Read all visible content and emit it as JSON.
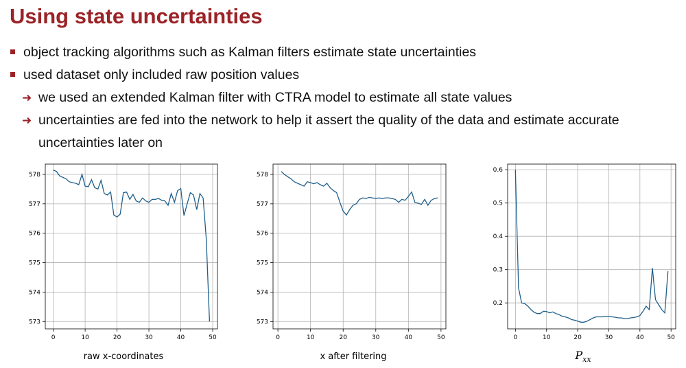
{
  "slide": {
    "title": "Using state uncertainties",
    "bullets": [
      {
        "text": "object tracking algorithms such as Kalman filters estimate state uncertainties"
      },
      {
        "text": "used dataset only included raw position values"
      }
    ],
    "sub_bullets": [
      {
        "text": "we used an extended Kalman filter with CTRA model to estimate all state values"
      },
      {
        "text": "uncertainties are fed into the network to help it assert the quality of the data and estimate accurate"
      },
      {
        "text": "uncertainties later on"
      }
    ],
    "arrow_icon": "right-arrow-icon",
    "accent_color": "#9b2226"
  },
  "captions": {
    "raw": "raw x-coordinates",
    "filtered": "x after filtering",
    "pxx_main": "P",
    "pxx_sub": "xx"
  },
  "chart_data": [
    {
      "type": "line",
      "series_color": "#1f5f8b",
      "grid": true,
      "xlim": [
        -2.5,
        51.5
      ],
      "ylim": [
        572.75,
        578.35
      ],
      "xticks": [
        0,
        10,
        20,
        30,
        40,
        50
      ],
      "yticks": [
        573,
        574,
        575,
        576,
        577,
        578
      ],
      "x": [
        0,
        1,
        2,
        3,
        4,
        5,
        6,
        7,
        8,
        9,
        10,
        11,
        12,
        13,
        14,
        15,
        16,
        17,
        18,
        19,
        20,
        21,
        22,
        23,
        24,
        25,
        26,
        27,
        28,
        29,
        30,
        31,
        32,
        33,
        34,
        35,
        36,
        37,
        38,
        39,
        40,
        41,
        42,
        43,
        44,
        45,
        46,
        47,
        48,
        49
      ],
      "values": [
        578.15,
        578.1,
        577.95,
        577.9,
        577.85,
        577.75,
        577.72,
        577.7,
        577.65,
        578.0,
        577.6,
        577.58,
        577.82,
        577.55,
        577.5,
        577.8,
        577.35,
        577.3,
        577.4,
        576.62,
        576.55,
        576.65,
        577.38,
        577.4,
        577.15,
        577.32,
        577.1,
        577.05,
        577.2,
        577.1,
        577.05,
        577.15,
        577.15,
        577.18,
        577.12,
        577.1,
        576.95,
        577.35,
        577.05,
        577.45,
        577.52,
        576.6,
        577.0,
        577.38,
        577.3,
        576.8,
        577.35,
        577.2,
        575.8,
        573.0
      ]
    },
    {
      "type": "line",
      "series_color": "#1f5f8b",
      "grid": true,
      "xlim": [
        -1.5,
        51.5
      ],
      "ylim": [
        572.75,
        578.35
      ],
      "xticks": [
        0,
        10,
        20,
        30,
        40,
        50
      ],
      "yticks": [
        573,
        574,
        575,
        576,
        577,
        578
      ],
      "x": [
        1,
        2,
        3,
        4,
        5,
        6,
        7,
        8,
        9,
        10,
        11,
        12,
        13,
        14,
        15,
        16,
        17,
        18,
        19,
        20,
        21,
        22,
        23,
        24,
        25,
        26,
        27,
        28,
        29,
        30,
        31,
        32,
        33,
        34,
        35,
        36,
        37,
        38,
        39,
        40,
        41,
        42,
        43,
        44,
        45,
        46,
        47,
        48,
        49
      ],
      "values": [
        578.1,
        578.0,
        577.92,
        577.85,
        577.75,
        577.7,
        577.65,
        577.6,
        577.75,
        577.72,
        577.68,
        577.72,
        577.65,
        577.6,
        577.7,
        577.55,
        577.45,
        577.38,
        577.05,
        576.75,
        576.62,
        576.8,
        576.95,
        577.0,
        577.15,
        577.2,
        577.18,
        577.22,
        577.2,
        577.18,
        577.2,
        577.18,
        577.2,
        577.2,
        577.18,
        577.15,
        577.05,
        577.15,
        577.12,
        577.25,
        577.4,
        577.05,
        577.02,
        576.98,
        577.15,
        576.95,
        577.12,
        577.18,
        577.2
      ]
    },
    {
      "type": "line",
      "series_color": "#1f5f8b",
      "grid": true,
      "xlim": [
        -2.5,
        51.5
      ],
      "ylim": [
        0.122,
        0.617
      ],
      "xticks": [
        0,
        10,
        20,
        30,
        40,
        50
      ],
      "yticks": [
        0.2,
        0.3,
        0.4,
        0.5,
        0.6
      ],
      "ytick_labels": [
        "0.2",
        "0.3",
        "0.4",
        "0.5",
        "0.6"
      ],
      "x": [
        0,
        1,
        2,
        3,
        4,
        5,
        6,
        7,
        8,
        9,
        10,
        11,
        12,
        13,
        14,
        15,
        16,
        17,
        18,
        19,
        20,
        21,
        22,
        23,
        24,
        25,
        26,
        27,
        28,
        29,
        30,
        31,
        32,
        33,
        34,
        35,
        36,
        37,
        38,
        39,
        40,
        41,
        42,
        43,
        44,
        45,
        46,
        47,
        48,
        49
      ],
      "values": [
        0.6,
        0.245,
        0.2,
        0.198,
        0.19,
        0.18,
        0.172,
        0.168,
        0.168,
        0.175,
        0.174,
        0.17,
        0.173,
        0.168,
        0.165,
        0.16,
        0.158,
        0.155,
        0.15,
        0.148,
        0.145,
        0.142,
        0.142,
        0.145,
        0.15,
        0.155,
        0.158,
        0.158,
        0.158,
        0.16,
        0.16,
        0.158,
        0.157,
        0.155,
        0.155,
        0.153,
        0.153,
        0.155,
        0.156,
        0.158,
        0.162,
        0.175,
        0.19,
        0.18,
        0.305,
        0.21,
        0.195,
        0.18,
        0.17,
        0.295
      ]
    }
  ]
}
